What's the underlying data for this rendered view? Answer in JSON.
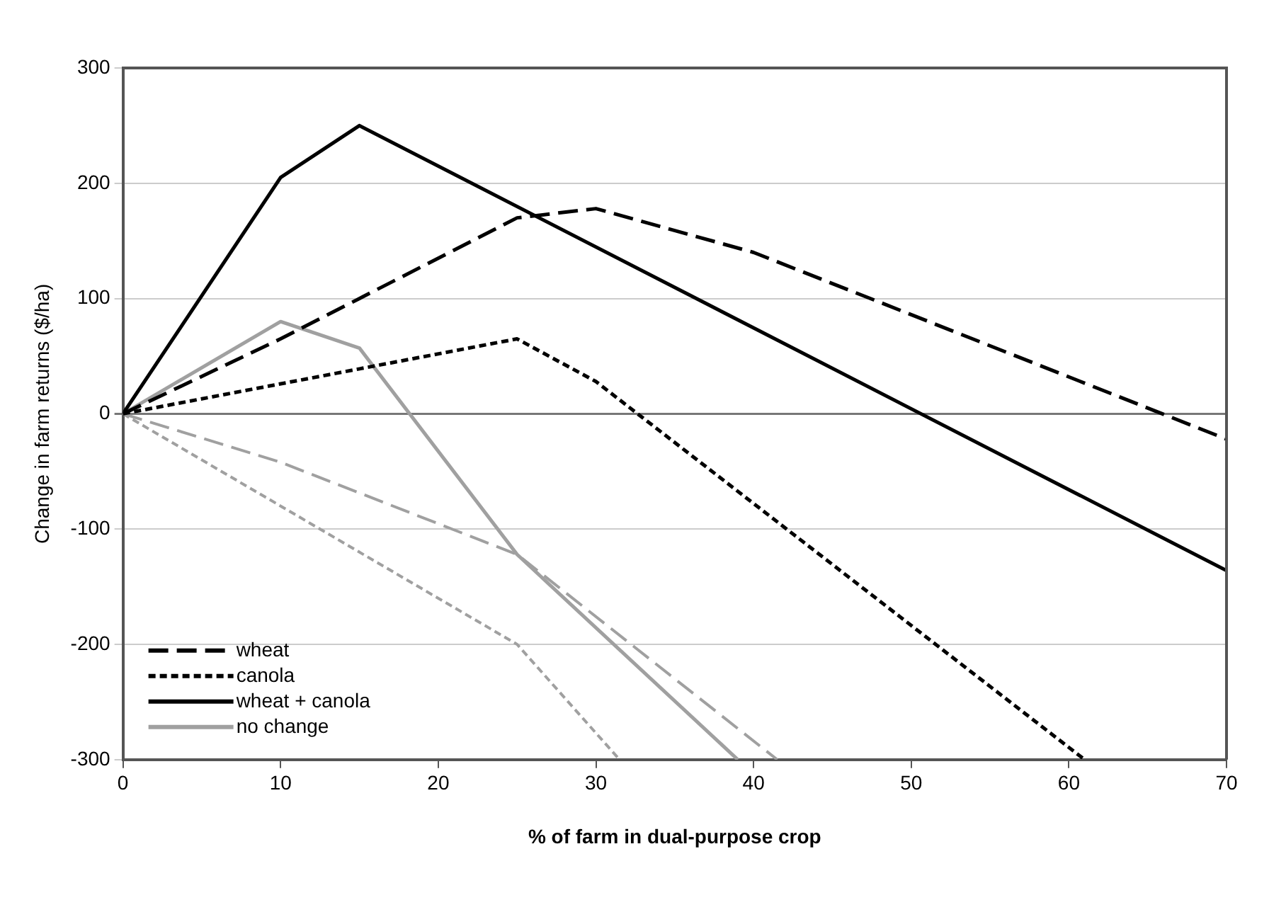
{
  "chart_data": {
    "type": "line",
    "xlabel": "% of farm in dual-purpose crop",
    "ylabel": "Change in farm returns ($/ha)",
    "xlim": [
      0,
      70
    ],
    "xticks": [
      0,
      10,
      20,
      30,
      40,
      50,
      60,
      70
    ],
    "ylim": [
      -300,
      300
    ],
    "yticks": [
      -300,
      -200,
      -100,
      0,
      100,
      200,
      300
    ],
    "grid": "y",
    "legend": "bottom left",
    "marker": "none",
    "series": [
      {
        "name": "wheat",
        "color": "#000000",
        "line_style": "dashed",
        "x": [
          0,
          10,
          25,
          30,
          40,
          70
        ],
        "values": [
          0,
          65,
          170,
          178,
          140,
          -22
        ]
      },
      {
        "name": "canola",
        "color": "#000000",
        "line_style": "dotted",
        "x": [
          0,
          25,
          30,
          61
        ],
        "values": [
          0,
          65,
          28,
          -300
        ]
      },
      {
        "name": "wheat + canola",
        "color": "#000000",
        "line_style": "solid",
        "x": [
          0,
          10,
          15,
          70
        ],
        "values": [
          0,
          205,
          250,
          -136
        ]
      },
      {
        "name": "no change",
        "color": "#a0a0a0",
        "line_style": "solid",
        "x": [
          0,
          10,
          15,
          25,
          39
        ],
        "values": [
          0,
          80,
          57,
          -122,
          -300
        ]
      },
      {
        "color": "#a0a0a0",
        "line_style": "dashed",
        "x": [
          0,
          10,
          25,
          41.5
        ],
        "values": [
          0,
          -42,
          -122,
          -300
        ]
      },
      {
        "color": "#a0a0a0",
        "line_style": "dotted",
        "x": [
          0,
          25,
          31.5
        ],
        "values": [
          0,
          -200,
          -300
        ]
      }
    ]
  }
}
